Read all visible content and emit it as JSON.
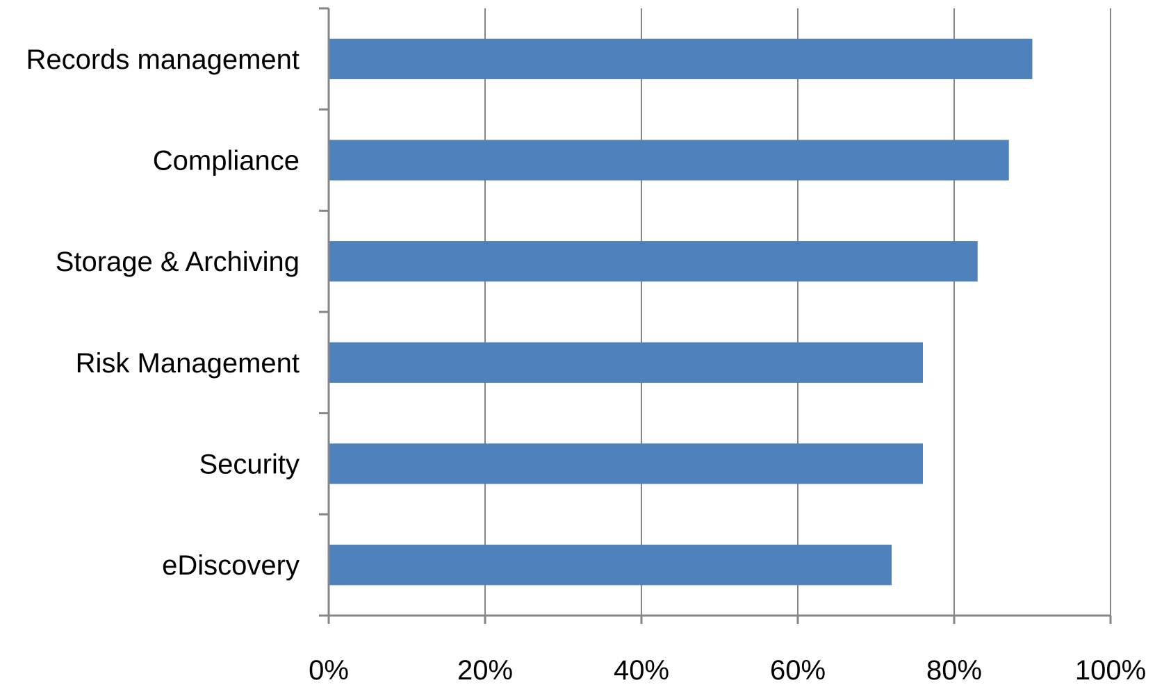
{
  "chart_data": {
    "type": "bar",
    "orientation": "horizontal",
    "title": "",
    "xlabel": "",
    "ylabel": "",
    "categories": [
      "Records management",
      "Compliance",
      "Storage & Archiving",
      "Risk Management",
      "Security",
      "eDiscovery"
    ],
    "values": [
      90,
      87,
      83,
      76,
      76,
      72
    ],
    "value_unit": "%",
    "xlim": [
      0,
      100
    ],
    "xticks": [
      "0%",
      "20%",
      "40%",
      "60%",
      "80%",
      "100%"
    ],
    "grid": "vertical",
    "legend": "none",
    "colors": {
      "bar": "#4f81bd",
      "grid": "#868686",
      "axis": "#868686",
      "text": "#000000"
    }
  }
}
